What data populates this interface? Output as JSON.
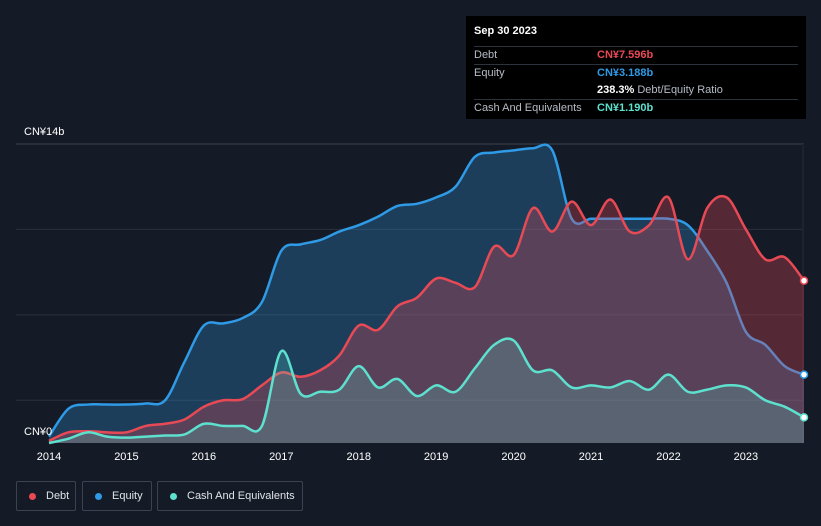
{
  "tooltip": {
    "date": "Sep 30 2023",
    "rows": [
      {
        "label": "Debt",
        "value": "CN¥7.596b",
        "color": "#e84a55"
      },
      {
        "label": "Equity",
        "value": "CN¥3.188b",
        "color": "#2f9ae5"
      },
      {
        "label": "",
        "value": "238.3%",
        "extra": "Debt/Equity Ratio",
        "color": "#ffffff"
      },
      {
        "label": "Cash And Equivalents",
        "value": "CN¥1.190b",
        "color": "#5ee0cf"
      }
    ]
  },
  "legend": [
    {
      "label": "Debt",
      "color": "#e84a55"
    },
    {
      "label": "Equity",
      "color": "#2f9ae5"
    },
    {
      "label": "Cash And Equivalents",
      "color": "#5ee0cf"
    }
  ],
  "chart_data": {
    "type": "area",
    "x_ticks": [
      "2014",
      "2015",
      "2016",
      "2017",
      "2018",
      "2019",
      "2020",
      "2021",
      "2022",
      "2023"
    ],
    "y_tick_labels": [
      "CN¥14b",
      "CN¥0"
    ],
    "ylim": [
      0,
      14
    ],
    "xlim": [
      2014.0,
      2023.75
    ],
    "grid": true,
    "legend_position": "bottom-left",
    "series": [
      {
        "name": "Debt",
        "color": "#e84a55",
        "x": [
          2014.0,
          2014.25,
          2014.5,
          2014.75,
          2015.0,
          2015.25,
          2015.5,
          2015.75,
          2016.0,
          2016.25,
          2016.5,
          2016.75,
          2017.0,
          2017.25,
          2017.5,
          2017.75,
          2018.0,
          2018.25,
          2018.5,
          2018.75,
          2019.0,
          2019.25,
          2019.5,
          2019.75,
          2020.0,
          2020.25,
          2020.5,
          2020.75,
          2021.0,
          2021.25,
          2021.5,
          2021.75,
          2022.0,
          2022.25,
          2022.5,
          2022.75,
          2023.0,
          2023.25,
          2023.5,
          2023.75
        ],
        "values": [
          0.1,
          0.5,
          0.55,
          0.5,
          0.5,
          0.8,
          0.9,
          1.1,
          1.7,
          2.0,
          2.05,
          2.7,
          3.3,
          3.1,
          3.4,
          4.1,
          5.5,
          5.3,
          6.4,
          6.8,
          7.7,
          7.5,
          7.3,
          9.2,
          8.8,
          11.0,
          9.9,
          11.3,
          10.2,
          11.4,
          9.9,
          10.2,
          11.5,
          8.6,
          11.0,
          11.5,
          10.0,
          8.6,
          8.7,
          7.6
        ]
      },
      {
        "name": "Equity",
        "color": "#2f9ae5",
        "x": [
          2014.0,
          2014.25,
          2014.5,
          2014.75,
          2015.0,
          2015.25,
          2015.5,
          2015.75,
          2016.0,
          2016.25,
          2016.5,
          2016.75,
          2017.0,
          2017.25,
          2017.5,
          2017.75,
          2018.0,
          2018.25,
          2018.5,
          2018.75,
          2019.0,
          2019.25,
          2019.5,
          2019.75,
          2020.0,
          2020.25,
          2020.5,
          2020.75,
          2021.0,
          2021.25,
          2021.5,
          2021.75,
          2022.0,
          2022.25,
          2022.5,
          2022.75,
          2023.0,
          2023.25,
          2023.5,
          2023.75
        ],
        "values": [
          0.3,
          1.6,
          1.8,
          1.8,
          1.8,
          1.85,
          2.0,
          3.8,
          5.5,
          5.6,
          5.85,
          6.6,
          9.0,
          9.3,
          9.5,
          9.9,
          10.2,
          10.6,
          11.1,
          11.2,
          11.5,
          12.0,
          13.4,
          13.6,
          13.7,
          13.8,
          13.7,
          10.5,
          10.5,
          10.5,
          10.5,
          10.5,
          10.5,
          10.2,
          9.0,
          7.5,
          5.2,
          4.6,
          3.6,
          3.2
        ]
      },
      {
        "name": "Cash And Equivalents",
        "color": "#5ee0cf",
        "x": [
          2014.0,
          2014.25,
          2014.5,
          2014.75,
          2015.0,
          2015.25,
          2015.5,
          2015.75,
          2016.0,
          2016.25,
          2016.5,
          2016.75,
          2017.0,
          2017.25,
          2017.5,
          2017.75,
          2018.0,
          2018.25,
          2018.5,
          2018.75,
          2019.0,
          2019.25,
          2019.5,
          2019.75,
          2020.0,
          2020.25,
          2020.5,
          2020.75,
          2021.0,
          2021.25,
          2021.5,
          2021.75,
          2022.0,
          2022.25,
          2022.5,
          2022.75,
          2023.0,
          2023.25,
          2023.5,
          2023.75
        ],
        "values": [
          0.0,
          0.2,
          0.5,
          0.3,
          0.25,
          0.3,
          0.35,
          0.4,
          0.9,
          0.8,
          0.8,
          0.8,
          4.3,
          2.3,
          2.4,
          2.5,
          3.6,
          2.6,
          3.0,
          2.2,
          2.7,
          2.4,
          3.5,
          4.6,
          4.8,
          3.4,
          3.4,
          2.6,
          2.7,
          2.6,
          2.9,
          2.5,
          3.2,
          2.4,
          2.5,
          2.7,
          2.6,
          2.0,
          1.7,
          1.2
        ]
      }
    ]
  }
}
